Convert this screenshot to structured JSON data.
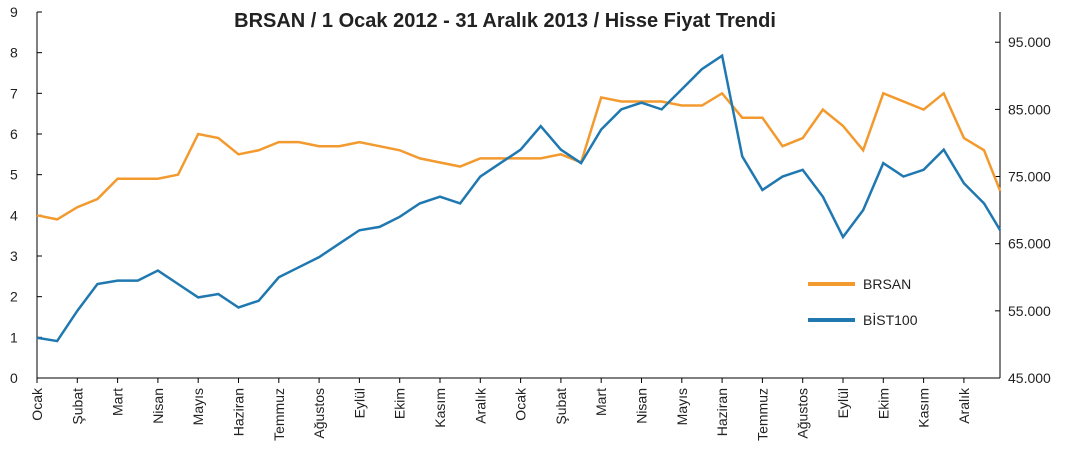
{
  "chart_data": {
    "type": "line",
    "title": "BRSAN / 1 Ocak 2012 - 31 Aralık 2013 / Hisse Fiyat Trendi",
    "x": [
      0,
      0.5,
      1,
      1.5,
      2,
      2.5,
      3,
      3.5,
      4,
      4.5,
      5,
      5.5,
      6,
      6.5,
      7,
      7.5,
      8,
      8.5,
      9,
      9.5,
      10,
      10.5,
      11,
      11.5,
      12,
      12.5,
      13,
      13.5,
      14,
      14.5,
      15,
      15.5,
      16,
      16.5,
      17,
      17.5,
      18,
      18.5,
      19,
      19.5,
      20,
      20.5,
      21,
      21.5,
      22,
      22.5,
      23,
      23.5,
      23.9
    ],
    "xlim": [
      0,
      23.9
    ],
    "xticks": [
      {
        "value": 0,
        "label": "Ocak"
      },
      {
        "value": 1,
        "label": "Şubat"
      },
      {
        "value": 2,
        "label": "Mart"
      },
      {
        "value": 3,
        "label": "Nisan"
      },
      {
        "value": 4,
        "label": "Mayıs"
      },
      {
        "value": 5,
        "label": "Haziran"
      },
      {
        "value": 6,
        "label": "Temmuz"
      },
      {
        "value": 7,
        "label": "Ağustos"
      },
      {
        "value": 8,
        "label": "Eylül"
      },
      {
        "value": 9,
        "label": "Ekim"
      },
      {
        "value": 10,
        "label": "Kasım"
      },
      {
        "value": 11,
        "label": "Aralık"
      },
      {
        "value": 12,
        "label": "Ocak"
      },
      {
        "value": 13,
        "label": "Şubat"
      },
      {
        "value": 14,
        "label": "Mart"
      },
      {
        "value": 15,
        "label": "Nisan"
      },
      {
        "value": 16,
        "label": "Mayıs"
      },
      {
        "value": 17,
        "label": "Haziran"
      },
      {
        "value": 18,
        "label": "Temmuz"
      },
      {
        "value": 19,
        "label": "Ağustos"
      },
      {
        "value": 20,
        "label": "Eylül"
      },
      {
        "value": 21,
        "label": "Ekim"
      },
      {
        "value": 22,
        "label": "Kasım"
      },
      {
        "value": 23,
        "label": "Aralık"
      }
    ],
    "ylim": [
      0,
      9
    ],
    "yticks": [
      0,
      1,
      2,
      3,
      4,
      5,
      6,
      7,
      8,
      9
    ],
    "y2lim": [
      45000,
      99500
    ],
    "y2ticks": [
      {
        "value": 45000,
        "label": "45.000"
      },
      {
        "value": 55000,
        "label": "55.000"
      },
      {
        "value": 65000,
        "label": "65.000"
      },
      {
        "value": 75000,
        "label": "75.000"
      },
      {
        "value": 85000,
        "label": "85.000"
      },
      {
        "value": 95000,
        "label": "95.000"
      }
    ],
    "series": [
      {
        "name": "BRSAN",
        "color": "#f39a2f",
        "values": [
          4.0,
          3.9,
          4.2,
          4.4,
          4.9,
          4.9,
          4.9,
          5.0,
          6.0,
          5.9,
          5.5,
          5.6,
          5.8,
          5.8,
          5.7,
          5.7,
          5.8,
          5.7,
          5.6,
          5.4,
          5.3,
          5.2,
          5.4,
          5.4,
          5.4,
          5.4,
          5.5,
          5.3,
          6.9,
          6.8,
          6.8,
          6.8,
          6.7,
          6.7,
          7.0,
          6.4,
          6.4,
          5.7,
          5.9,
          6.6,
          6.2,
          5.6,
          7.0,
          6.8,
          6.6,
          7.0,
          5.9,
          5.6,
          4.6
        ]
      },
      {
        "name": "BİST100",
        "color": "#1f78b0",
        "axis": "y2",
        "values": [
          51000,
          50500,
          55000,
          59000,
          59500,
          59500,
          61000,
          59000,
          57000,
          57500,
          55500,
          56500,
          60000,
          61500,
          63000,
          65000,
          67000,
          67500,
          69000,
          71000,
          72000,
          71000,
          75000,
          77000,
          79000,
          82500,
          79000,
          77000,
          82000,
          85000,
          86000,
          85000,
          88000,
          91000,
          93000,
          78000,
          73000,
          75000,
          76000,
          72000,
          66000,
          70000,
          77000,
          75000,
          76000,
          79000,
          74000,
          71000,
          67000
        ]
      }
    ]
  }
}
